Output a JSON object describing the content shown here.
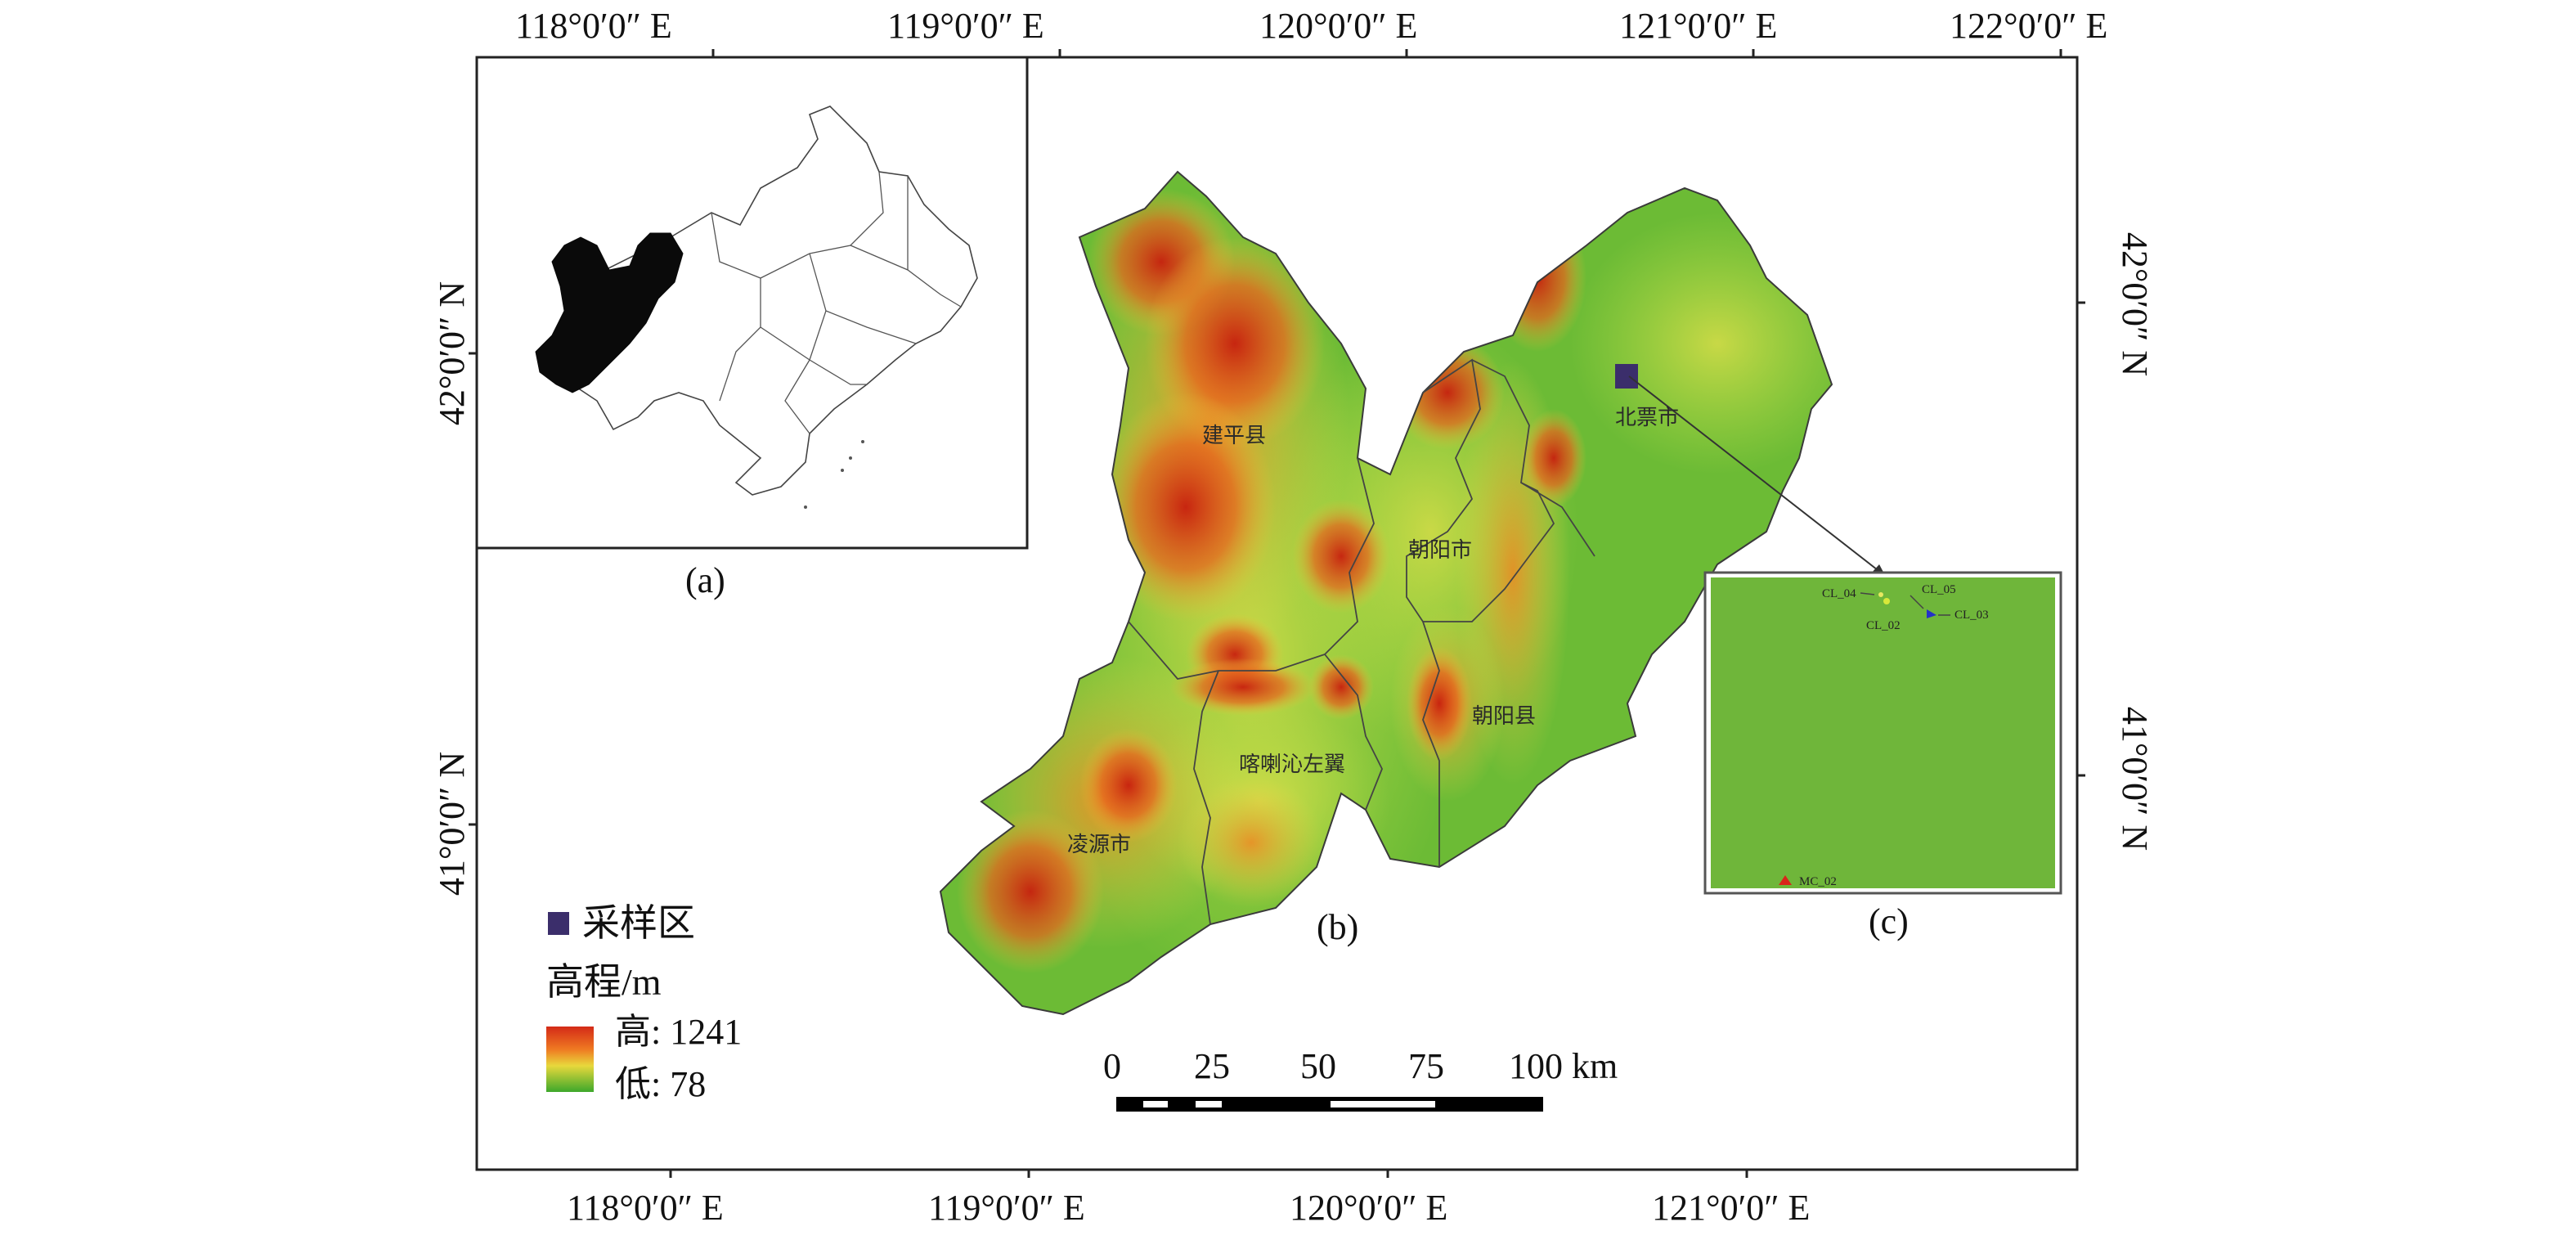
{
  "coordinates": {
    "top": [
      "118°0′0″ E",
      "119°0′0″ E",
      "120°0′0″ E",
      "121°0′0″ E",
      "122°0′0″ E"
    ],
    "bottom": [
      "118°0′0″ E",
      "119°0′0″ E",
      "120°0′0″ E",
      "121°0′0″ E"
    ],
    "left": [
      "42°0′0″ N",
      "41°0′0″ N"
    ],
    "right": [
      "42°0′0″ N",
      "41°0′0″ N"
    ]
  },
  "panels": {
    "a": "(a)",
    "b": "(b)",
    "c": "(c)"
  },
  "counties": {
    "jianping": "建平县",
    "beipiao": "北票市",
    "chaoyang_city": "朝阳市",
    "chaoyang_county": "朝阳县",
    "harqin": "喀喇沁左翼",
    "lingyuan": "凌源市"
  },
  "sample_points": [
    "CL_04",
    "CL_05",
    "CL_02",
    "CL_03",
    "MC_02"
  ],
  "legend": {
    "sampling_area": "采样区",
    "elevation_title": "高程/m",
    "high": "高: 1241",
    "low": "低: 78",
    "high_color": "#d32a17",
    "low_color": "#3da82b"
  },
  "scale_bar": {
    "labels": [
      "0",
      "25",
      "50",
      "75",
      "100 km"
    ]
  },
  "colors": {
    "sample_marker": "#3b2e6b",
    "inset_green": "#6fb63a"
  }
}
